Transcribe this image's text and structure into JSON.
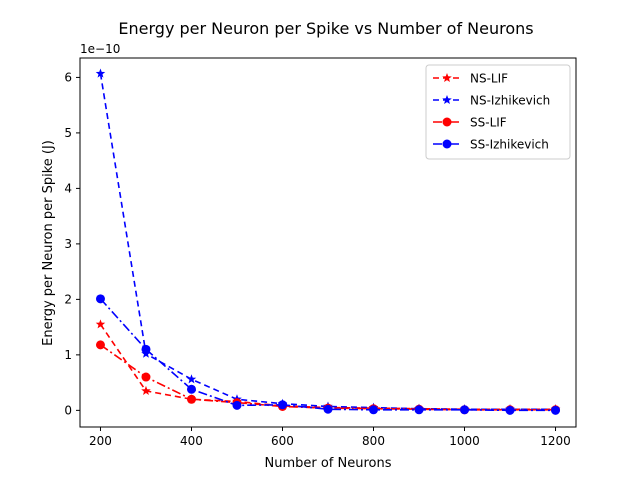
{
  "chart_data": {
    "type": "line",
    "title": "Energy per Neuron per Spike vs Number of Neurons",
    "xlabel": "Number of Neurons",
    "ylabel": "Energy per Neuron per Spike (J)",
    "y_offset_label": "1e−10",
    "xlim": [
      155,
      1245
    ],
    "ylim": [
      -0.3,
      6.35
    ],
    "xticks": [
      200,
      400,
      600,
      800,
      1000,
      1200
    ],
    "yticks": [
      0,
      1,
      2,
      3,
      4,
      5,
      6
    ],
    "x": [
      200,
      300,
      400,
      500,
      600,
      700,
      800,
      900,
      1000,
      1100,
      1200
    ],
    "legend_position": "top-right",
    "grid": false,
    "series": [
      {
        "name": "NS-LIF",
        "color": "#ff0000",
        "dash": "6,4",
        "marker": "star",
        "values": [
          1.55,
          0.35,
          0.2,
          0.16,
          0.08,
          0.05,
          0.04,
          0.03,
          0.02,
          0.02,
          0.02
        ]
      },
      {
        "name": "NS-Izhikevich",
        "color": "#0000ff",
        "dash": "6,4",
        "marker": "star",
        "values": [
          6.07,
          1.02,
          0.56,
          0.2,
          0.12,
          0.07,
          0.05,
          0.03,
          0.02,
          0.02,
          0.02
        ]
      },
      {
        "name": "SS-LIF",
        "color": "#ff0000",
        "dash": "9,3,2,3",
        "marker": "circle",
        "values": [
          1.18,
          0.6,
          0.2,
          0.14,
          0.07,
          0.04,
          0.03,
          0.02,
          0.01,
          0.01,
          0.01
        ]
      },
      {
        "name": "SS-Izhikevich",
        "color": "#0000ff",
        "dash": "9,3,2,3",
        "marker": "circle",
        "values": [
          2.01,
          1.1,
          0.38,
          0.09,
          0.1,
          0.02,
          0.01,
          0.01,
          0.01,
          0.0,
          0.0
        ]
      }
    ]
  }
}
